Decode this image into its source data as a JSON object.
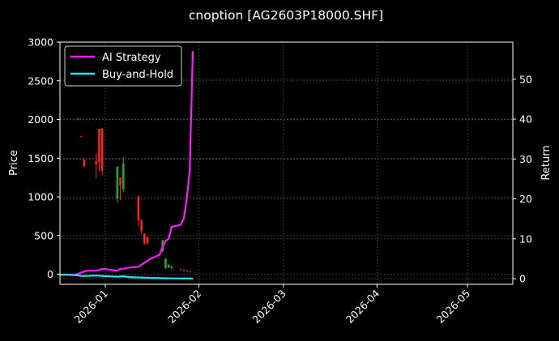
{
  "chart_data": {
    "type": "line",
    "title": "cnoption [AG2603P18000.SHF]",
    "xlabel": "",
    "ylabel_left": "Price",
    "ylabel_right": "Return",
    "x_ticks": [
      "2026-01",
      "2026-02",
      "2026-03",
      "2026-04",
      "2026-05"
    ],
    "x_tick_dates": [
      "2026-01-01",
      "2026-02-01",
      "2026-03-01",
      "2026-04-01",
      "2026-05-01"
    ],
    "xlim": [
      "2025-12-17",
      "2026-05-16"
    ],
    "ylim_left": [
      -130,
      3000
    ],
    "yticks_left": [
      0,
      500,
      1000,
      1500,
      2000,
      2500,
      3000
    ],
    "ylim_right": [
      -1.4,
      59.3
    ],
    "yticks_right": [
      0,
      10,
      20,
      30,
      40,
      50
    ],
    "grid": true,
    "legend_position": "top-left",
    "colors": {
      "background": "#000000",
      "up": "#22aa22",
      "down": "#ff2020",
      "strategy": "#ff1aff",
      "buyhold": "#22e5f5",
      "grid": "#555555"
    },
    "candles": [
      {
        "date": "2025-12-23",
        "open": 2010,
        "high": 2020,
        "low": 2000,
        "close": 2000
      },
      {
        "date": "2025-12-24",
        "open": 1780,
        "high": 1790,
        "low": 1770,
        "close": 1775
      },
      {
        "date": "2025-12-25",
        "open": 1480,
        "high": 1500,
        "low": 1380,
        "close": 1400
      },
      {
        "date": "2025-12-29",
        "open": 1460,
        "high": 1560,
        "low": 1240,
        "close": 1420
      },
      {
        "date": "2025-12-30",
        "open": 1880,
        "high": 1880,
        "low": 1330,
        "close": 1450
      },
      {
        "date": "2025-12-31",
        "open": 1880,
        "high": 1890,
        "low": 1280,
        "close": 1340
      },
      {
        "date": "2026-01-05",
        "open": 980,
        "high": 1400,
        "low": 920,
        "close": 1390
      },
      {
        "date": "2026-01-06",
        "open": 1250,
        "high": 1250,
        "low": 960,
        "close": 1150
      },
      {
        "date": "2026-01-07",
        "open": 1100,
        "high": 1510,
        "low": 1060,
        "close": 1430
      },
      {
        "date": "2026-01-12",
        "open": 1000,
        "high": 1020,
        "low": 620,
        "close": 700
      },
      {
        "date": "2026-01-13",
        "open": 700,
        "high": 710,
        "low": 520,
        "close": 560
      },
      {
        "date": "2026-01-14",
        "open": 520,
        "high": 530,
        "low": 380,
        "close": 400
      },
      {
        "date": "2026-01-15",
        "open": 480,
        "high": 490,
        "low": 380,
        "close": 400
      },
      {
        "date": "2026-01-20",
        "open": 300,
        "high": 450,
        "low": 280,
        "close": 440
      },
      {
        "date": "2026-01-21",
        "open": 80,
        "high": 210,
        "low": 70,
        "close": 200
      },
      {
        "date": "2026-01-22",
        "open": 90,
        "high": 130,
        "low": 80,
        "close": 120
      },
      {
        "date": "2026-01-23",
        "open": 80,
        "high": 110,
        "low": 60,
        "close": 100
      },
      {
        "date": "2026-01-26",
        "open": 65,
        "high": 70,
        "low": 50,
        "close": 55
      },
      {
        "date": "2026-01-27",
        "open": 45,
        "high": 55,
        "low": 40,
        "close": 50
      },
      {
        "date": "2026-01-28",
        "open": 40,
        "high": 50,
        "low": 35,
        "close": 45
      },
      {
        "date": "2026-01-29",
        "open": 35,
        "high": 40,
        "low": 25,
        "close": 30
      }
    ],
    "series": [
      {
        "name": "AI Strategy",
        "dates": [
          "2025-12-17",
          "2025-12-19",
          "2025-12-22",
          "2025-12-23",
          "2025-12-24",
          "2025-12-25",
          "2025-12-26",
          "2025-12-29",
          "2025-12-30",
          "2025-12-31",
          "2026-01-05",
          "2026-01-06",
          "2026-01-07",
          "2026-01-08",
          "2026-01-09",
          "2026-01-12",
          "2026-01-13",
          "2026-01-14",
          "2026-01-15",
          "2026-01-16",
          "2026-01-19",
          "2026-01-20",
          "2026-01-21",
          "2026-01-22",
          "2026-01-23",
          "2026-01-26",
          "2026-01-27",
          "2026-01-28",
          "2026-01-29",
          "2026-01-30"
        ],
        "values": [
          1.0,
          1.0,
          1.0,
          1.2,
          1.5,
          1.8,
          2.0,
          2.0,
          2.2,
          2.5,
          2.0,
          2.5,
          2.5,
          2.7,
          2.8,
          3.0,
          3.5,
          4.0,
          4.5,
          5.0,
          6.0,
          8.0,
          9.5,
          10.0,
          13.0,
          13.5,
          15.0,
          20.0,
          27.0,
          57.0
        ]
      },
      {
        "name": "Buy-and-Hold",
        "dates": [
          "2025-12-17",
          "2025-12-19",
          "2025-12-22",
          "2025-12-23",
          "2025-12-24",
          "2025-12-25",
          "2025-12-26",
          "2025-12-29",
          "2025-12-30",
          "2025-12-31",
          "2026-01-05",
          "2026-01-06",
          "2026-01-07",
          "2026-01-08",
          "2026-01-09",
          "2026-01-12",
          "2026-01-13",
          "2026-01-14",
          "2026-01-15",
          "2026-01-16",
          "2026-01-19",
          "2026-01-20",
          "2026-01-21",
          "2026-01-22",
          "2026-01-23",
          "2026-01-26",
          "2026-01-27",
          "2026-01-28",
          "2026-01-29",
          "2026-01-30"
        ],
        "values": [
          1.0,
          1.0,
          0.9,
          0.8,
          0.7,
          0.7,
          0.7,
          0.8,
          0.75,
          0.7,
          0.5,
          0.55,
          0.6,
          0.5,
          0.4,
          0.3,
          0.3,
          0.25,
          0.25,
          0.2,
          0.15,
          0.12,
          0.1,
          0.1,
          0.08,
          0.06,
          0.05,
          0.05,
          0.04,
          0.04
        ]
      }
    ]
  }
}
